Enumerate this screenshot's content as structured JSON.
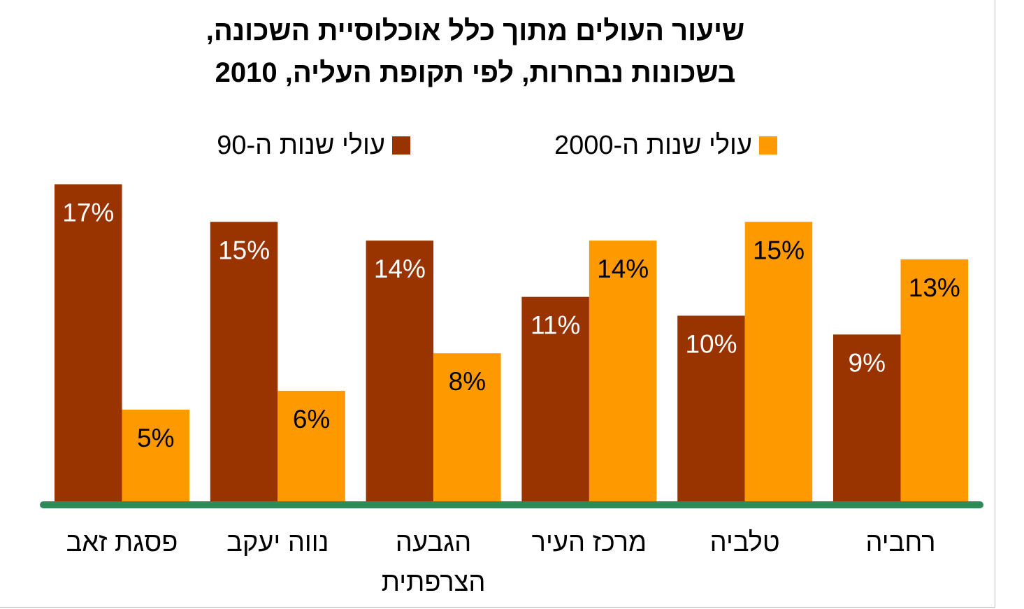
{
  "chart_data": {
    "type": "bar",
    "title_lines": [
      "שיעור העולים מתוך כלל אוכלוסיית השכונה,",
      "בשכונות נבחרות, לפי תקופת העליה, 2010"
    ],
    "categories": [
      [
        "פסגת זאב"
      ],
      [
        "נווה יעקב"
      ],
      [
        "הגבעה",
        "הצרפתית"
      ],
      [
        "מרכז העיר"
      ],
      [
        "טלביה"
      ],
      [
        "רחביה"
      ]
    ],
    "series": [
      {
        "name": "עולי שנות ה-90",
        "color": "#993300",
        "values": [
          17,
          15,
          14,
          11,
          10,
          9
        ],
        "labels": [
          "17%",
          "15%",
          "14%",
          "11%",
          "10%",
          "9%"
        ]
      },
      {
        "name": "עולי שנות ה-2000",
        "color": "#ff9900",
        "values": [
          5,
          6,
          8,
          14,
          15,
          13
        ],
        "labels": [
          "5%",
          "6%",
          "8%",
          "14%",
          "15%",
          "13%"
        ]
      }
    ],
    "ylim": [
      0,
      17
    ],
    "xlabel": "",
    "ylabel": "",
    "grid": false,
    "legend_position": "top",
    "baseline_color": "#2e8b57"
  }
}
